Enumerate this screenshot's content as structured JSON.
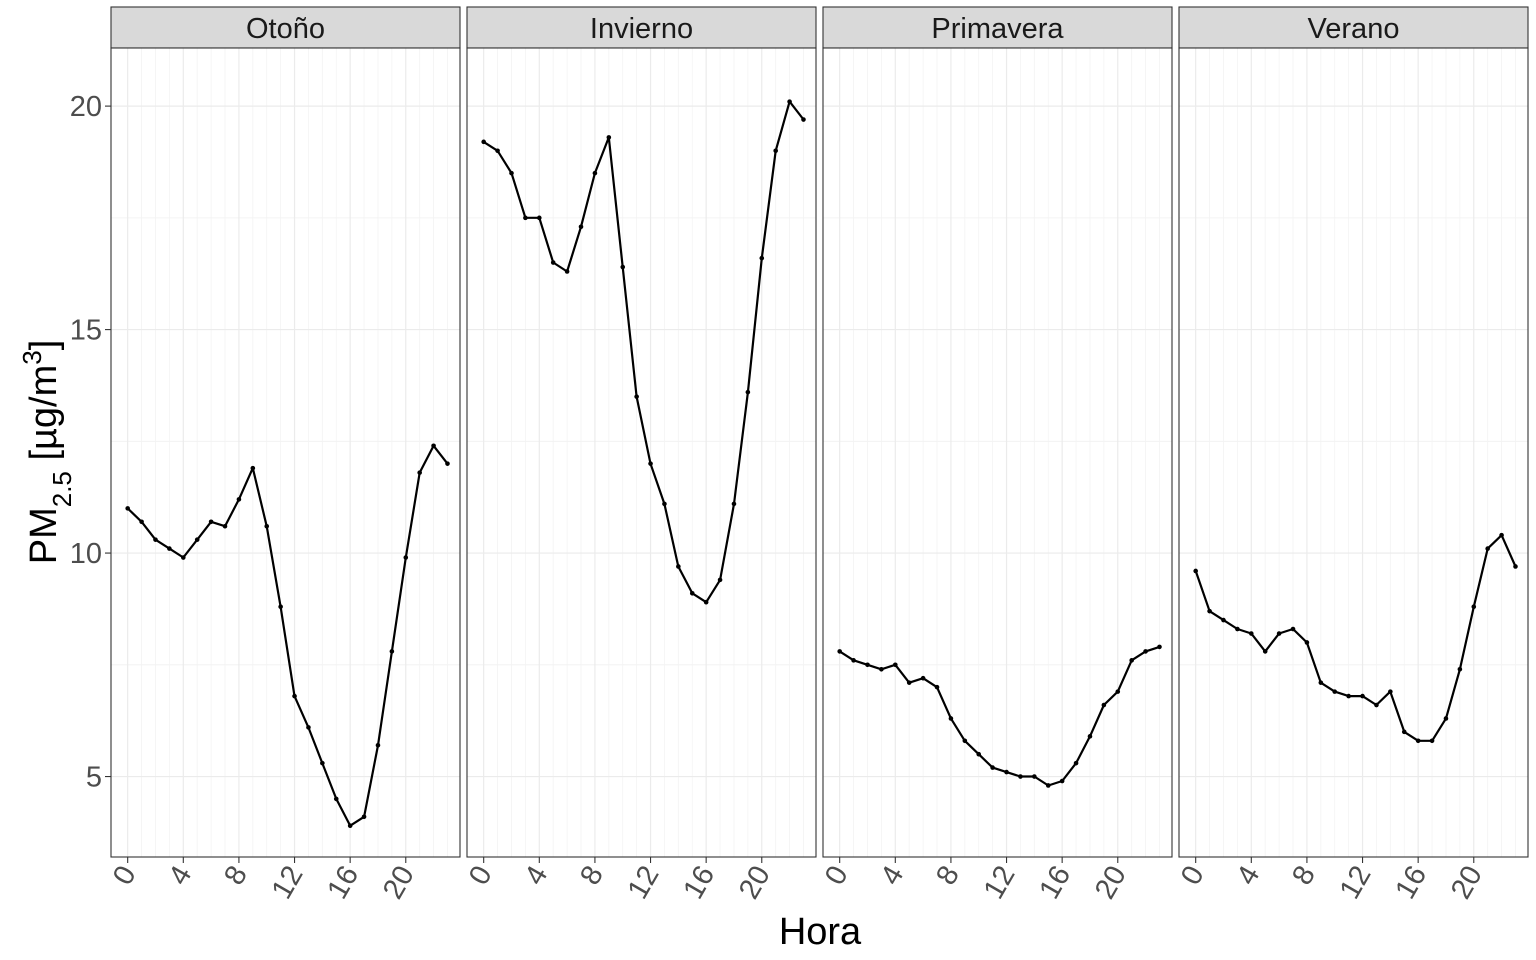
{
  "chart_data": {
    "type": "line",
    "xlabel": "Hora",
    "ylabel": {
      "base": "PM",
      "sub": "2.5",
      "mid": " [µg/m",
      "sup": "3",
      "end": "]"
    },
    "xlim": [
      -1.2,
      23.9
    ],
    "ylim": [
      3.2,
      21.3
    ],
    "x_ticks": [
      "0",
      "4",
      "8",
      "12",
      "16",
      "20"
    ],
    "y_ticks": [
      "5",
      "10",
      "15",
      "20"
    ],
    "grid": true,
    "x": [
      0,
      1,
      2,
      3,
      4,
      5,
      6,
      7,
      8,
      9,
      10,
      11,
      12,
      13,
      14,
      15,
      16,
      17,
      18,
      19,
      20,
      21,
      22,
      23
    ],
    "panels": [
      {
        "name": "Otoño",
        "values": [
          11.0,
          10.7,
          10.3,
          10.1,
          9.9,
          10.3,
          10.7,
          10.6,
          11.2,
          11.9,
          10.6,
          8.8,
          6.8,
          6.1,
          5.3,
          4.5,
          3.9,
          4.1,
          5.7,
          7.8,
          9.9,
          11.8,
          12.4,
          12.0
        ]
      },
      {
        "name": "Invierno",
        "values": [
          19.2,
          19.0,
          18.5,
          17.5,
          17.5,
          16.5,
          16.3,
          17.3,
          18.5,
          19.3,
          16.4,
          13.5,
          12.0,
          11.1,
          9.7,
          9.1,
          8.9,
          9.4,
          11.1,
          13.6,
          16.6,
          19.0,
          20.1,
          19.7
        ]
      },
      {
        "name": "Primavera",
        "values": [
          7.8,
          7.6,
          7.5,
          7.4,
          7.5,
          7.1,
          7.2,
          7.0,
          6.3,
          5.8,
          5.5,
          5.2,
          5.1,
          5.0,
          5.0,
          4.8,
          4.9,
          5.3,
          5.9,
          6.6,
          6.9,
          7.6,
          7.8,
          7.9
        ]
      },
      {
        "name": "Verano",
        "values": [
          9.6,
          8.7,
          8.5,
          8.3,
          8.2,
          7.8,
          8.2,
          8.3,
          8.0,
          7.1,
          6.9,
          6.8,
          6.8,
          6.6,
          6.9,
          6.0,
          5.8,
          5.8,
          6.3,
          7.4,
          8.8,
          10.1,
          10.4,
          9.7
        ]
      }
    ]
  }
}
